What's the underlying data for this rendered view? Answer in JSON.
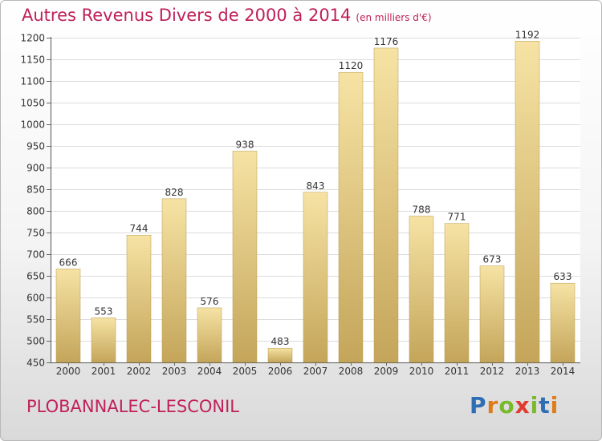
{
  "title": "Autres Revenus Divers de 2000 à 2014",
  "title_unit": "(en milliers d'€)",
  "place_name": "PLOBANNALEC-LESCONIL",
  "logo": {
    "letters": [
      "P",
      "r",
      "o",
      "x",
      "i",
      "t",
      "i"
    ],
    "colors": [
      "#2f6db5",
      "#e07b1a",
      "#7ab82c",
      "#e03c2e",
      "#7ab82c",
      "#2f6db5",
      "#e07b1a"
    ]
  },
  "colors": {
    "title": "#c0205a",
    "bar_light": "#f6e3a4",
    "bar_dark": "#c4a55a",
    "grid": "#dcdcdc",
    "axis_text": "#333333"
  },
  "chart_data": {
    "type": "bar",
    "categories": [
      "2000",
      "2001",
      "2002",
      "2003",
      "2004",
      "2005",
      "2006",
      "2007",
      "2008",
      "2009",
      "2010",
      "2011",
      "2012",
      "2013",
      "2014"
    ],
    "values": [
      666,
      553,
      744,
      828,
      576,
      938,
      483,
      843,
      1120,
      1176,
      788,
      771,
      673,
      1192,
      633
    ],
    "data_labels": [
      "666",
      "553",
      "744",
      "828",
      "576",
      "938",
      "483",
      "843",
      "1120",
      "1176",
      "788",
      "771",
      "673",
      "1192",
      "633"
    ],
    "yticks": [
      450,
      500,
      550,
      600,
      650,
      700,
      750,
      800,
      850,
      900,
      950,
      1000,
      1050,
      1100,
      1150,
      1200
    ],
    "ylim": [
      450,
      1200
    ],
    "grid": true
  }
}
